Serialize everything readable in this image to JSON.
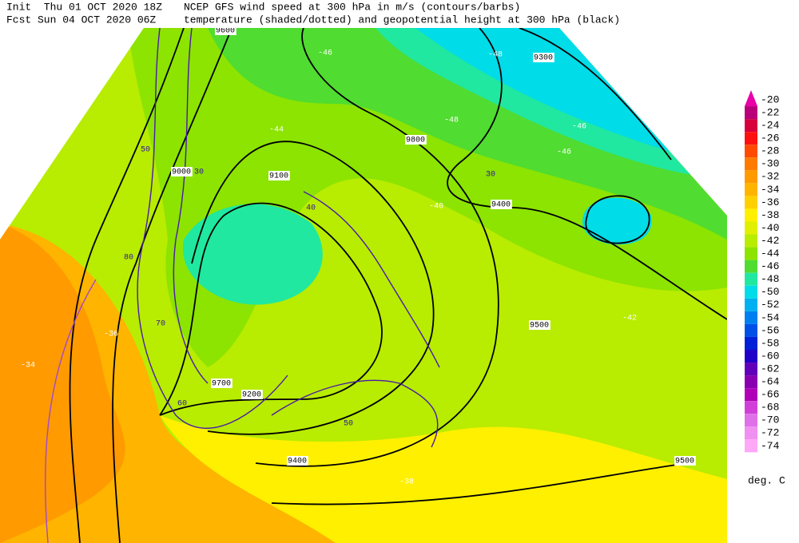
{
  "header": {
    "init": "Init  Thu 01 OCT 2020 18Z",
    "fcst": "Fcst Sun 04 OCT 2020 06Z",
    "title1": "NCEP GFS wind speed at 300 hPa in m/s (contours/barbs)",
    "title2": "temperature (shaded/dotted) and geopotential height at 300 hPa (black)"
  },
  "colorbar": {
    "units": "deg. C",
    "levels": [
      -20,
      -22,
      -24,
      -26,
      -28,
      -30,
      -32,
      -34,
      -36,
      -38,
      -40,
      -42,
      -44,
      -46,
      -48,
      -50,
      -52,
      -54,
      -56,
      -58,
      -60,
      -62,
      -64,
      -66,
      -68,
      -70,
      -72,
      -74
    ],
    "colors": [
      "#e800a8",
      "#b8007a",
      "#d8003c",
      "#ff1010",
      "#ff4a00",
      "#ff7a00",
      "#ff9a00",
      "#ffb400",
      "#ffd000",
      "#fff000",
      "#e0f000",
      "#b8ec00",
      "#8ce400",
      "#50dc30",
      "#20e8a0",
      "#00dce8",
      "#00b0f0",
      "#0080f0",
      "#0050e8",
      "#0020d8",
      "#2000c8",
      "#6000b8",
      "#8800b0",
      "#b000b8",
      "#d040d8",
      "#e070e8",
      "#f090f0",
      "#ffa8f8"
    ]
  },
  "map_labels": [
    "9300",
    "9000",
    "30",
    "-46",
    "-48",
    "-46",
    "-44",
    "9100",
    "9600",
    "50",
    "40",
    "9800",
    "-40",
    "9400",
    "9500",
    "-42",
    "9200",
    "9700",
    "60",
    "70",
    "-34",
    "-36",
    "-38",
    "9500",
    "30",
    "-46",
    "9400",
    "50",
    "80",
    "-48"
  ]
}
